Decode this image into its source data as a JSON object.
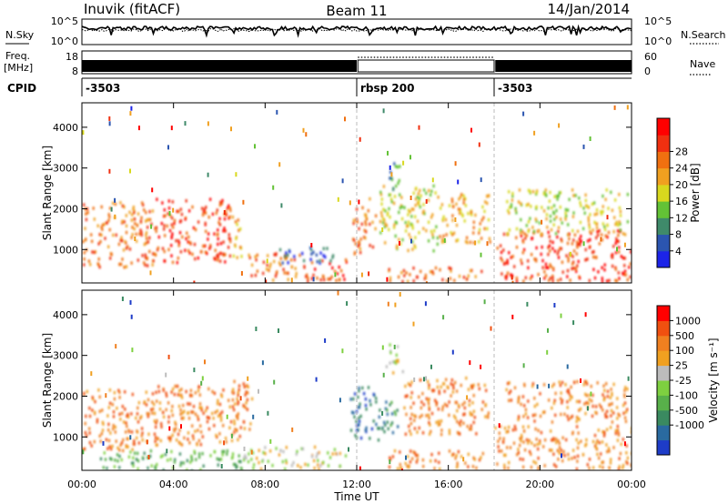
{
  "header": {
    "station": "Inuvik (fitACF)",
    "beam": "Beam 11",
    "date": "14/Jan/2014"
  },
  "panel_labels": {
    "nsky": "N.Sky",
    "nsearch": "N.Search",
    "freq": "Freq.",
    "freq_unit": "[MHz]",
    "nave": "Nave",
    "cpid": "CPID"
  },
  "noise_axis": {
    "left_ticks": [
      "10^5",
      "10^0"
    ],
    "right_ticks": [
      "10^5",
      "10^0"
    ]
  },
  "freq_axis": {
    "left_ticks": [
      "18",
      "8"
    ],
    "right_ticks": [
      "60",
      "0"
    ]
  },
  "cpid_segments": [
    {
      "label": "-3503",
      "start_hour": 0,
      "end_hour": 12
    },
    {
      "label": "rbsp 200",
      "start_hour": 12,
      "end_hour": 18
    },
    {
      "label": "-3503",
      "start_hour": 18,
      "end_hour": 24
    }
  ],
  "chart_data": [
    {
      "type": "heatmap",
      "name": "power",
      "ylabel": "Slant Range [km]",
      "ylim": [
        180,
        4600
      ],
      "y_ticks": [
        "1000",
        "2000",
        "3000",
        "4000"
      ],
      "colorbar_label": "Power [dB]",
      "colorbar_ticks": [
        "4",
        "8",
        "12",
        "16",
        "20",
        "24",
        "28"
      ],
      "colorbar_colors": [
        "#1c24e8",
        "#2b55b0",
        "#3f8a6a",
        "#63c236",
        "#d8d81e",
        "#f0a020",
        "#f07010",
        "#f03010",
        "#ff0000"
      ],
      "blobs": [
        {
          "t0": 0.0,
          "t1": 3.2,
          "r0": 600,
          "r1": 2200,
          "level": 6
        },
        {
          "t0": 3.2,
          "t1": 6.5,
          "r0": 700,
          "r1": 2300,
          "level": 7
        },
        {
          "t0": 6.5,
          "t1": 7.0,
          "r0": 800,
          "r1": 1900,
          "level": 5
        },
        {
          "t0": 7.2,
          "t1": 9.5,
          "r0": 250,
          "r1": 950,
          "level": 6
        },
        {
          "t0": 9.5,
          "t1": 11.6,
          "r0": 250,
          "r1": 800,
          "level": 7
        },
        {
          "t0": 8.5,
          "t1": 11.0,
          "r0": 700,
          "r1": 1100,
          "level": 1
        },
        {
          "t0": 11.8,
          "t1": 12.8,
          "r0": 900,
          "r1": 2300,
          "level": 6
        },
        {
          "t0": 12.9,
          "t1": 15.5,
          "r0": 1000,
          "r1": 2600,
          "level": 4
        },
        {
          "t0": 13.3,
          "t1": 13.9,
          "r0": 2500,
          "r1": 3200,
          "level": 2
        },
        {
          "t0": 15.5,
          "t1": 17.8,
          "r0": 1200,
          "r1": 2400,
          "level": 5
        },
        {
          "t0": 13.3,
          "t1": 17.5,
          "r0": 250,
          "r1": 600,
          "level": 6
        },
        {
          "t0": 18.1,
          "t1": 24.0,
          "r0": 250,
          "r1": 1500,
          "level": 7
        },
        {
          "t0": 18.5,
          "t1": 23.8,
          "r0": 1400,
          "r1": 2500,
          "level": 4
        }
      ]
    },
    {
      "type": "heatmap",
      "name": "velocity",
      "ylabel": "Slant Range [km]",
      "ylim": [
        180,
        4600
      ],
      "y_ticks": [
        "1000",
        "2000",
        "3000",
        "4000"
      ],
      "colorbar_label": "Velocity [m s⁻¹]",
      "colorbar_ticks": [
        "1000",
        "500",
        "100",
        "25",
        "-25",
        "-100",
        "-500",
        "-1000"
      ],
      "colorbar_colors": [
        "#1e3cc8",
        "#2a6aa0",
        "#3a8a60",
        "#58b04a",
        "#7ed040",
        "#bcbcbc",
        "#f0a020",
        "#f08020",
        "#f05010",
        "#ff0000"
      ],
      "blobs": [
        {
          "t0": 0.0,
          "t1": 3.2,
          "r0": 700,
          "r1": 2200,
          "level": 7
        },
        {
          "t0": 3.2,
          "t1": 6.8,
          "r0": 800,
          "r1": 2300,
          "level": 7
        },
        {
          "t0": 0.5,
          "t1": 7.0,
          "r0": 200,
          "r1": 700,
          "level": 3
        },
        {
          "t0": 7.0,
          "t1": 11.5,
          "r0": 250,
          "r1": 800,
          "level": 5
        },
        {
          "t0": 6.5,
          "t1": 7.4,
          "r0": 900,
          "r1": 2400,
          "level": 7
        },
        {
          "t0": 11.7,
          "t1": 12.8,
          "r0": 900,
          "r1": 2300,
          "level": 1
        },
        {
          "t0": 12.8,
          "t1": 13.8,
          "r0": 900,
          "r1": 1900,
          "level": 2
        },
        {
          "t0": 13.2,
          "t1": 14.0,
          "r0": 2600,
          "r1": 3300,
          "level": 5
        },
        {
          "t0": 14.0,
          "t1": 17.8,
          "r0": 1100,
          "r1": 2500,
          "level": 7
        },
        {
          "t0": 13.3,
          "t1": 17.5,
          "r0": 250,
          "r1": 700,
          "level": 7
        },
        {
          "t0": 18.0,
          "t1": 24.0,
          "r0": 250,
          "r1": 1300,
          "level": 7
        },
        {
          "t0": 18.5,
          "t1": 23.8,
          "r0": 1400,
          "r1": 2400,
          "level": 7
        }
      ]
    }
  ],
  "x_axis": {
    "label": "Time UT",
    "ticks": [
      "00:00",
      "04:00",
      "08:00",
      "12:00",
      "16:00",
      "20:00",
      "00:00"
    ],
    "range_hours": [
      0,
      24
    ]
  }
}
